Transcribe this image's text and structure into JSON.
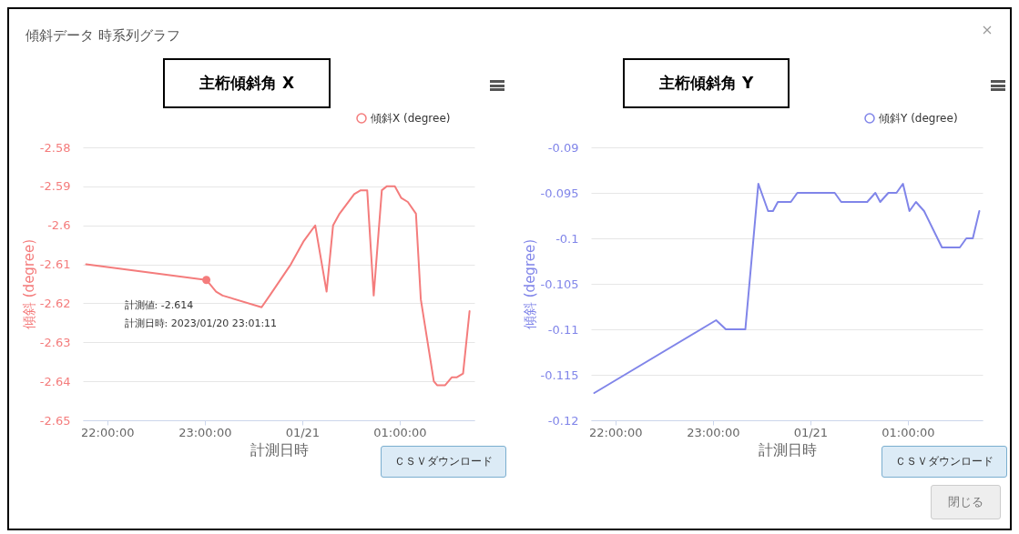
{
  "chart_data": [
    {
      "type": "line",
      "title": "主桁傾斜角 X",
      "xlabel": "計測日時",
      "ylabel": "傾斜 (degree)",
      "series": [
        {
          "name": "傾斜X (degree)",
          "color": "#f47c7c",
          "x": [
            "2023-01-20T21:47",
            "2023-01-20T23:01",
            "2023-01-20T23:07",
            "2023-01-20T23:11",
            "2023-01-20T23:35",
            "2023-01-20T23:40",
            "2023-01-20T23:53",
            "2023-01-21T00:01",
            "2023-01-21T00:08",
            "2023-01-21T00:15",
            "2023-01-21T00:19",
            "2023-01-21T00:23",
            "2023-01-21T00:32",
            "2023-01-21T00:36",
            "2023-01-21T00:40",
            "2023-01-21T00:44",
            "2023-01-21T00:49",
            "2023-01-21T00:52",
            "2023-01-21T00:57",
            "2023-01-21T01:01",
            "2023-01-21T01:05",
            "2023-01-21T01:10",
            "2023-01-21T01:13",
            "2023-01-21T01:21",
            "2023-01-21T01:23",
            "2023-01-21T01:28",
            "2023-01-21T01:32",
            "2023-01-21T01:35",
            "2023-01-21T01:39",
            "2023-01-21T01:43"
          ],
          "values": [
            -2.61,
            -2.614,
            -2.617,
            -2.618,
            -2.621,
            -2.618,
            -2.61,
            -2.604,
            -2.6,
            -2.617,
            -2.6,
            -2.597,
            -2.592,
            -2.591,
            -2.591,
            -2.618,
            -2.591,
            -2.59,
            -2.59,
            -2.593,
            -2.594,
            -2.597,
            -2.619,
            -2.64,
            -2.641,
            -2.641,
            -2.639,
            -2.639,
            -2.638,
            -2.622
          ]
        }
      ],
      "xlim": [
        "2023-01-20T21:45",
        "2023-01-21T01:46"
      ],
      "xticks": [
        {
          "value": "2023-01-20T22:00",
          "label": "22:00:00"
        },
        {
          "value": "2023-01-20T23:00",
          "label": "23:00:00"
        },
        {
          "value": "2023-01-21T00:00",
          "label": "01/21"
        },
        {
          "value": "2023-01-21T01:00",
          "label": "01:00:00"
        }
      ],
      "ylim": [
        -2.65,
        -2.58
      ],
      "yticks": [
        -2.65,
        -2.64,
        -2.63,
        -2.62,
        -2.61,
        -2.6,
        -2.59,
        -2.58
      ],
      "grid": "y",
      "legend": "top right",
      "annotations": [
        "傾斜データ 時系列グラフ",
        {
          "text": "計測値: -2.614\n計測日時: 2023/01/20 23:01:11",
          "x": "2023-01-20T23:01",
          "y": -2.614
        },
        "ＣＳＶダウンロード"
      ]
    },
    {
      "type": "line",
      "title": "主桁傾斜角 Y",
      "xlabel": "計測日時",
      "ylabel": "傾斜 (degree)",
      "series": [
        {
          "name": "傾斜Y (degree)",
          "color": "#8085e9",
          "x": [
            "2023-01-20T21:47",
            "2023-01-20T23:02",
            "2023-01-20T23:08",
            "2023-01-20T23:20",
            "2023-01-20T23:28",
            "2023-01-20T23:34",
            "2023-01-20T23:37",
            "2023-01-20T23:40",
            "2023-01-20T23:48",
            "2023-01-20T23:52",
            "2023-01-21T00:15",
            "2023-01-21T00:19",
            "2023-01-21T00:35",
            "2023-01-21T00:40",
            "2023-01-21T00:43",
            "2023-01-21T00:48",
            "2023-01-21T00:53",
            "2023-01-21T00:57",
            "2023-01-21T01:01",
            "2023-01-21T01:05",
            "2023-01-21T01:10",
            "2023-01-21T01:21",
            "2023-01-21T01:32",
            "2023-01-21T01:36",
            "2023-01-21T01:40",
            "2023-01-21T01:44"
          ],
          "values": [
            -0.117,
            -0.109,
            -0.11,
            -0.11,
            -0.094,
            -0.097,
            -0.097,
            -0.096,
            -0.096,
            -0.095,
            -0.095,
            -0.096,
            -0.096,
            -0.095,
            -0.096,
            -0.095,
            -0.095,
            -0.094,
            -0.097,
            -0.096,
            -0.097,
            -0.101,
            -0.101,
            -0.1,
            -0.1,
            -0.097
          ]
        }
      ],
      "xlim": [
        "2023-01-20T21:45",
        "2023-01-21T01:46"
      ],
      "xticks": [
        {
          "value": "2023-01-20T22:00",
          "label": "22:00:00"
        },
        {
          "value": "2023-01-20T23:00",
          "label": "23:00:00"
        },
        {
          "value": "2023-01-21T00:00",
          "label": "01/21"
        },
        {
          "value": "2023-01-21T01:00",
          "label": "01:00:00"
        }
      ],
      "ylim": [
        -0.12,
        -0.09
      ],
      "yticks": [
        -0.12,
        -0.115,
        -0.11,
        -0.105,
        -0.1,
        -0.095,
        -0.09
      ],
      "grid": "y",
      "legend": "top right",
      "annotations": [
        "ＣＳＶダウンロード",
        "閉じる"
      ]
    }
  ]
}
